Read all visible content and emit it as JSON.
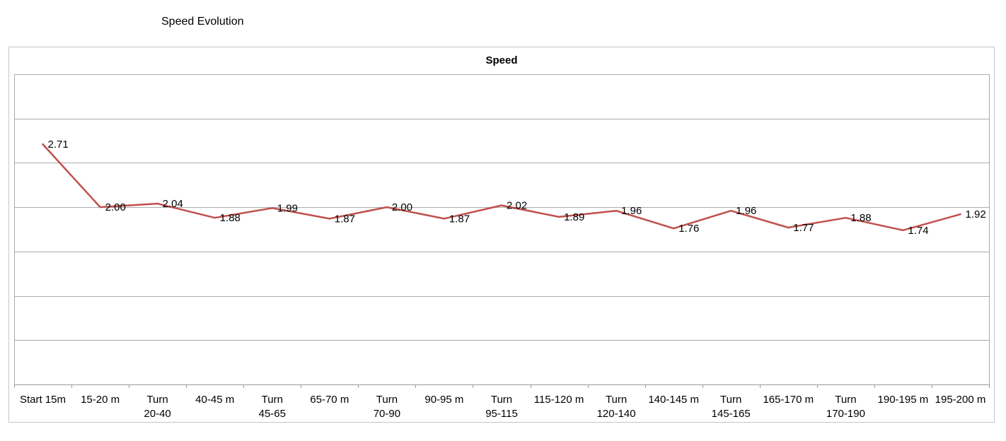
{
  "page": {
    "title": "Speed Evolution"
  },
  "chart_data": {
    "type": "line",
    "title": "Speed",
    "categories": [
      [
        "Start 15m"
      ],
      [
        "15-20 m"
      ],
      [
        "Turn",
        "20-40"
      ],
      [
        "40-45 m"
      ],
      [
        "Turn",
        "45-65"
      ],
      [
        "65-70 m"
      ],
      [
        "Turn",
        "70-90"
      ],
      [
        "90-95 m"
      ],
      [
        "Turn",
        "95-115"
      ],
      [
        "115-120 m"
      ],
      [
        "Turn",
        "120-140"
      ],
      [
        "140-145 m"
      ],
      [
        "Turn",
        "145-165"
      ],
      [
        "165-170 m"
      ],
      [
        "Turn",
        "170-190"
      ],
      [
        "190-195 m"
      ],
      [
        "195-200 m"
      ]
    ],
    "series": [
      {
        "name": "Speed",
        "values": [
          2.71,
          2.0,
          2.04,
          1.88,
          1.99,
          1.87,
          2.0,
          1.87,
          2.02,
          1.89,
          1.96,
          1.76,
          1.96,
          1.77,
          1.88,
          1.74,
          1.92
        ],
        "labels": [
          "2.71",
          "2.00",
          "2.04",
          "1.88",
          "1.99",
          "1.87",
          "2.00",
          "1.87",
          "2.02",
          "1.89",
          "1.96",
          "1.76",
          "1.96",
          "1.77",
          "1.88",
          "1.74",
          "1.92"
        ],
        "color": "#C0504D"
      }
    ],
    "ylim": [
      0,
      3.5
    ],
    "gridline_step": 0.5,
    "grid": true,
    "legend": "none",
    "data_label_position": "right",
    "colors": {
      "gridline": "#ABABAB",
      "axis": "#9B9B9B",
      "chart_border": "#C6C6C6",
      "label_text": "#000000"
    }
  }
}
